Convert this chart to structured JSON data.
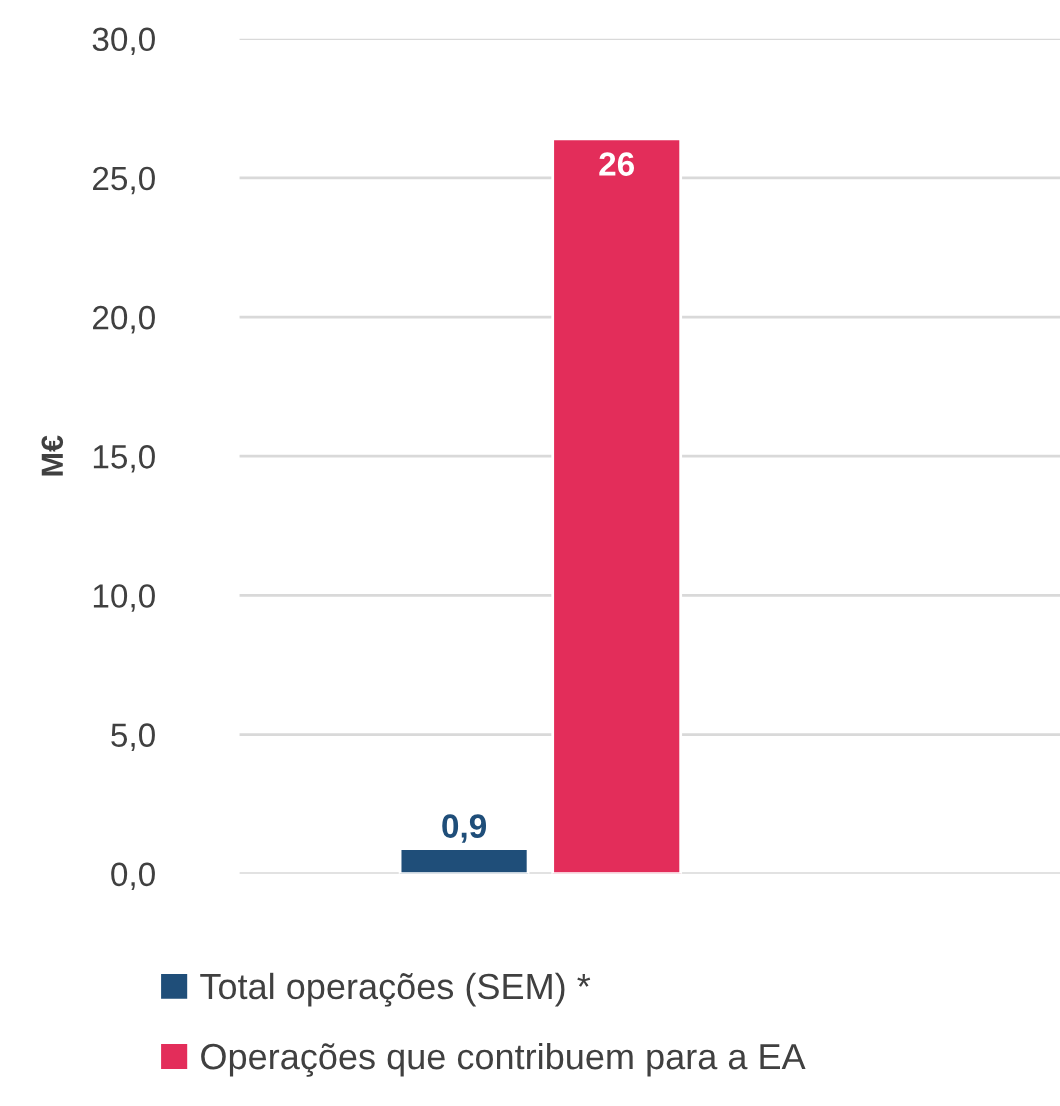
{
  "chart_data": {
    "type": "bar",
    "ylabel": "M€",
    "categories": [
      null
    ],
    "series": [
      {
        "name": "Total operações (SEM) *",
        "color": "#1f4e79",
        "values": [
          0.9
        ],
        "value_labels": [
          "0,9"
        ]
      },
      {
        "name": "Operações que contribuem para a EA",
        "color": "#e32d5a",
        "values": [
          26.4
        ],
        "value_labels": [
          "26"
        ]
      }
    ],
    "ylim": [
      0,
      30
    ],
    "yticks": [
      {
        "value": 0,
        "label": "0,0"
      },
      {
        "value": 5,
        "label": "5,0"
      },
      {
        "value": 10,
        "label": "10,0"
      },
      {
        "value": 15,
        "label": "15,0"
      },
      {
        "value": 20,
        "label": "20,0"
      },
      {
        "value": 25,
        "label": "25,0"
      },
      {
        "value": 30,
        "label": "30,0"
      }
    ],
    "grid": "y",
    "legend": "bottom"
  }
}
